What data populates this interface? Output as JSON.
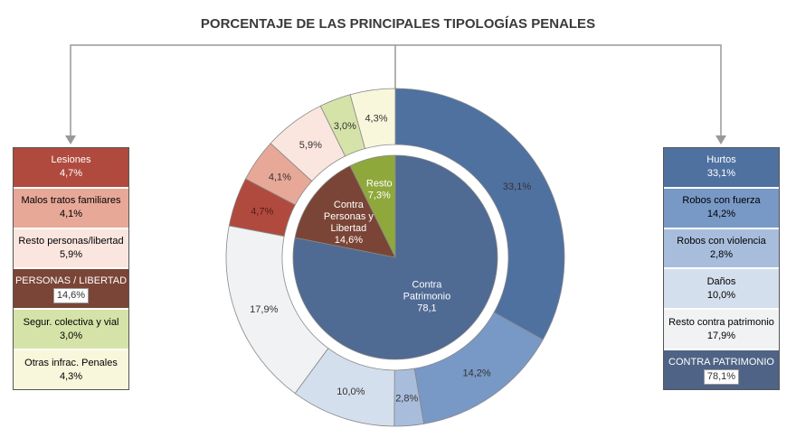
{
  "chart_data": {
    "type": "pie",
    "title": "PORCENTAJE DE LAS PRINCIPALES TIPOLOGÍAS PENALES",
    "inner": [
      {
        "label": "Contra Patrimonio",
        "value": 78.1,
        "text": [
          "Contra",
          "Patrimonio",
          "78,1"
        ],
        "color": "#4f6a93"
      },
      {
        "label": "Contra Personas y Libertad",
        "value": 14.6,
        "text": [
          "Contra",
          "Personas y",
          "Libertad",
          "14,6%"
        ],
        "color": "#7a4536"
      },
      {
        "label": "Resto",
        "value": 7.3,
        "text": [
          "Resto",
          "7,3%"
        ],
        "color": "#8fa83c"
      }
    ],
    "outer": [
      {
        "label": "Hurtos",
        "value": 33.1,
        "text": "33,1%",
        "color": "#4f71a0"
      },
      {
        "label": "Robos con fuerza",
        "value": 14.2,
        "text": "14,2%",
        "color": "#7898c6"
      },
      {
        "label": "Robos con violencia",
        "value": 2.8,
        "text": "2,8%",
        "color": "#a8bddc"
      },
      {
        "label": "Daños",
        "value": 10.0,
        "text": "10,0%",
        "color": "#d3dfec"
      },
      {
        "label": "Resto contra patrimonio",
        "value": 17.9,
        "text": "17,9%",
        "color": "#f1f2f4"
      },
      {
        "label": "Lesiones",
        "value": 4.7,
        "text": "4,7%",
        "color": "#b04a3e"
      },
      {
        "label": "Malos tratos familiares",
        "value": 4.1,
        "text": "4,1%",
        "color": "#e8a898"
      },
      {
        "label": "Resto personas/libertad",
        "value": 5.9,
        "text": "5,9%",
        "color": "#fbe6df"
      },
      {
        "label": "Segur. colectiva y vial",
        "value": 3.0,
        "text": "3,0%",
        "color": "#d5e3a8"
      },
      {
        "label": "Otras infrac. Penales",
        "value": 4.3,
        "text": "4,3%",
        "color": "#f8f7dc"
      }
    ]
  },
  "left_box": [
    {
      "label": "Lesiones",
      "value": "4,7%",
      "color": "#b04a3e",
      "dark": true
    },
    {
      "label": "Malos tratos familiares",
      "value": "4,1%",
      "color": "#e8a898"
    },
    {
      "label": "Resto personas/libertad",
      "value": "5,9%",
      "color": "#fbe6df"
    },
    {
      "label": "PERSONAS / LIBERTAD",
      "value": "14,6%",
      "color": "#7a4536",
      "dark": true,
      "total": true
    },
    {
      "label": "Segur. colectiva y vial",
      "value": "3,0%",
      "color": "#d5e3a8"
    },
    {
      "label": "Otras infrac. Penales",
      "value": "4,3%",
      "color": "#f8f7dc"
    }
  ],
  "right_box": [
    {
      "label": "Hurtos",
      "value": "33,1%",
      "color": "#4f71a0",
      "dark": true
    },
    {
      "label": "Robos con fuerza",
      "value": "14,2%",
      "color": "#7898c6"
    },
    {
      "label": "Robos con violencia",
      "value": "2,8%",
      "color": "#a8bddc"
    },
    {
      "label": "Daños",
      "value": "10,0%",
      "color": "#d3dfec"
    },
    {
      "label": "Resto contra patrimonio",
      "value": "17,9%",
      "color": "#f1f2f4"
    },
    {
      "label": "CONTRA PATRIMONIO",
      "value": "78,1%",
      "color": "#4e6385",
      "dark": true,
      "total": true
    }
  ]
}
